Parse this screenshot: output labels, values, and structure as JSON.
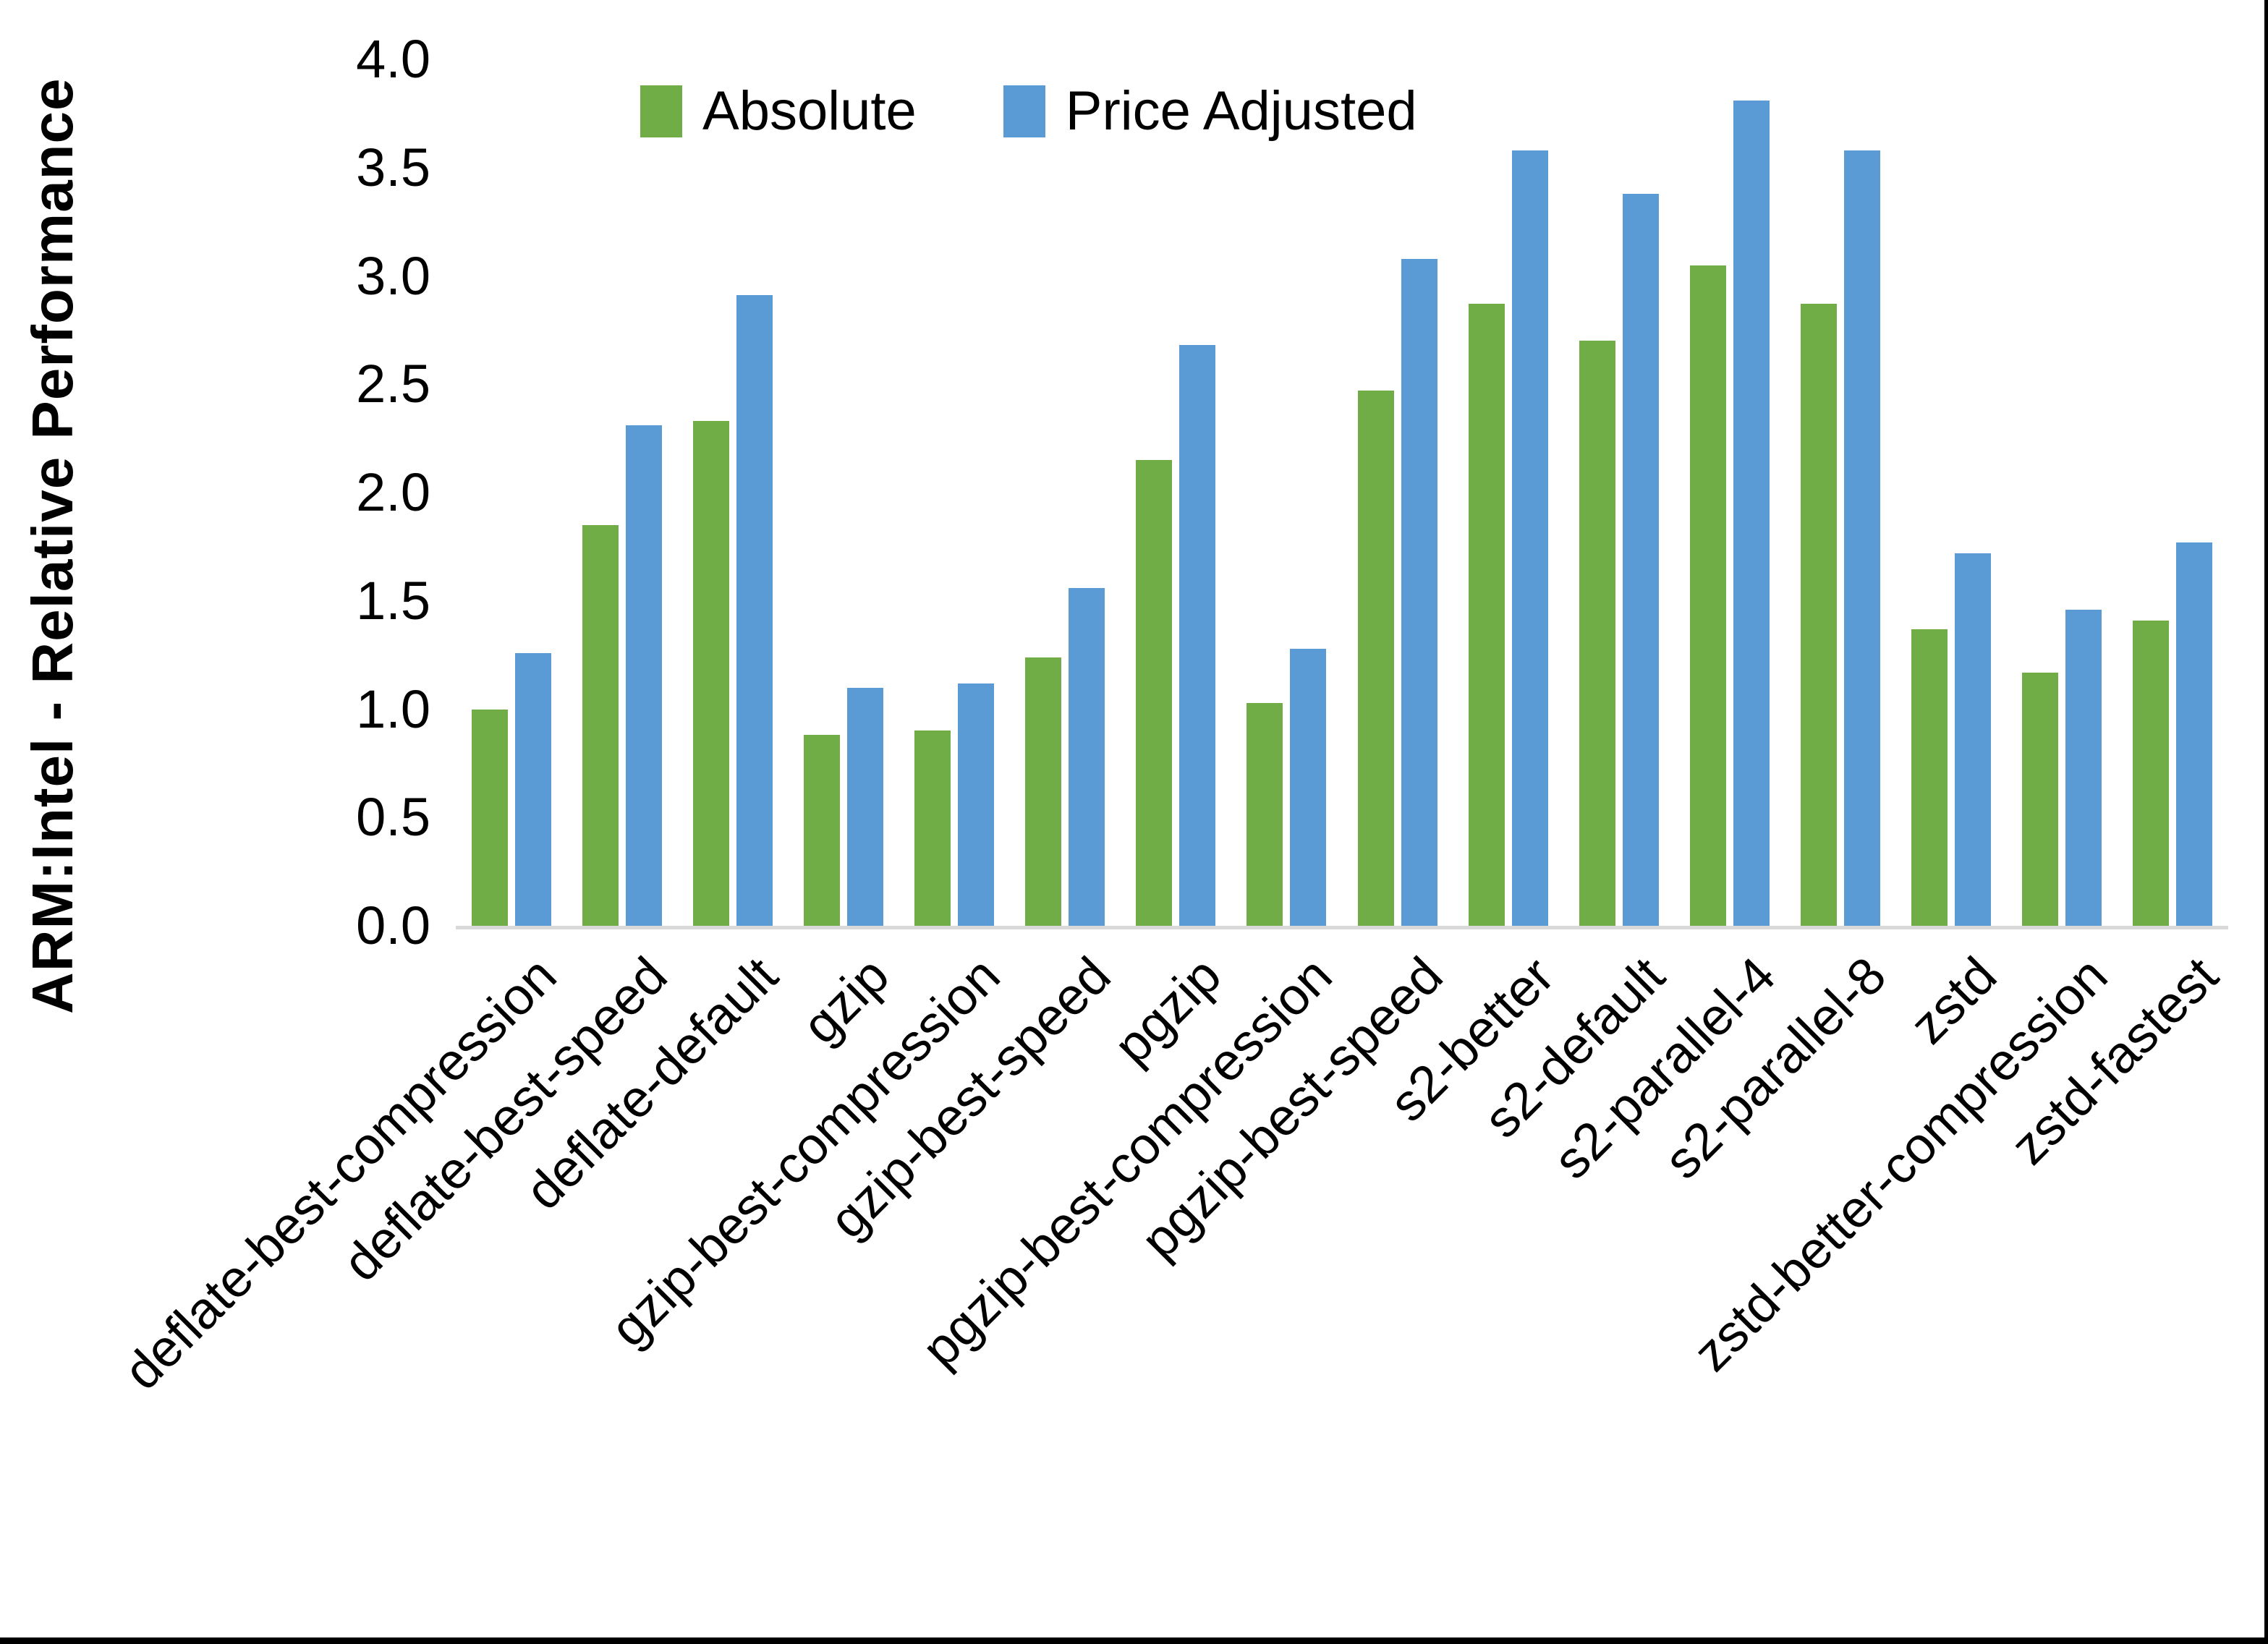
{
  "chart_data": {
    "type": "bar",
    "title": "",
    "ylabel": "ARM:Intel - Relative Performance",
    "xlabel": "",
    "ylim": [
      0.0,
      4.0
    ],
    "ytick_step": 0.5,
    "ytick_labels": [
      "0.0",
      "0.5",
      "1.0",
      "1.5",
      "2.0",
      "2.5",
      "3.0",
      "3.5",
      "4.0"
    ],
    "grid": false,
    "legend_position": "top-center",
    "axis_line_color": "#d9d9d9",
    "categories": [
      "deflate-best-compression",
      "deflate-best-speed",
      "deflate-default",
      "gzip",
      "gzip-best-compression",
      "gzip-best-speed",
      "pgzip",
      "pgzip-best-compression",
      "pgzip-best-speed",
      "s2-better",
      "s2-default",
      "s2-parallel-4",
      "s2-parallel-8",
      "zstd",
      "zstd-better-compression",
      "zstd-fastest"
    ],
    "series": [
      {
        "name": "Absolute",
        "color": "#70AD47",
        "values": [
          1.0,
          1.85,
          2.33,
          0.88,
          0.9,
          1.24,
          2.15,
          1.03,
          2.47,
          2.87,
          2.7,
          3.05,
          2.87,
          1.37,
          1.17,
          1.41
        ]
      },
      {
        "name": "Price Adjusted",
        "color": "#5B9BD5",
        "values": [
          1.26,
          2.31,
          2.91,
          1.1,
          1.12,
          1.56,
          2.68,
          1.28,
          3.08,
          3.58,
          3.38,
          3.81,
          3.58,
          1.72,
          1.46,
          1.77
        ]
      }
    ]
  }
}
